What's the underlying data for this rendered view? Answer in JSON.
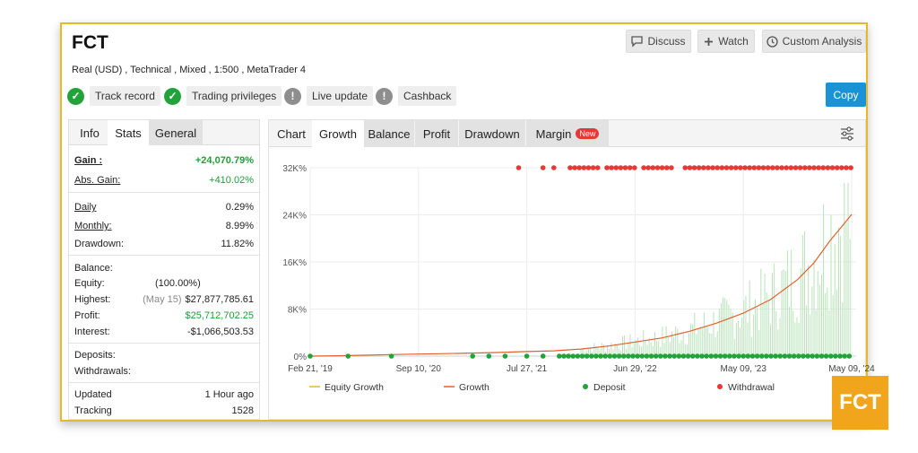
{
  "header": {
    "title": "FCT",
    "subtitle": "Real (USD) , Technical , Mixed , 1:500 , MetaTrader 4",
    "buttons": {
      "discuss": "Discuss",
      "watch": "Watch",
      "custom_analysis": "Custom Analysis",
      "copy": "Copy"
    }
  },
  "badges": [
    {
      "label": "Track record",
      "status": "verified"
    },
    {
      "label": "Trading privileges",
      "status": "verified"
    },
    {
      "label": "Live update",
      "status": "unverified"
    },
    {
      "label": "Cashback",
      "status": "unverified"
    }
  ],
  "left_tabs": {
    "info": "Info",
    "stats": "Stats",
    "general": "General"
  },
  "stats": {
    "gain_label": "Gain :",
    "gain_value": "+24,070.79%",
    "abs_gain_label": "Abs. Gain:",
    "abs_gain_value": "+410.02%",
    "daily_label": "Daily",
    "daily_value": "0.29%",
    "monthly_label": "Monthly:",
    "monthly_value": "8.99%",
    "drawdown_label": "Drawdown:",
    "drawdown_value": "11.82%",
    "balance_label": "Balance:",
    "equity_label": "Equity:",
    "equity_value": "(100.00%)",
    "highest_label": "Highest:",
    "highest_date": "(May 15)",
    "highest_value": "$27,877,785.61",
    "profit_label": "Profit:",
    "profit_value": "$25,712,702.25",
    "interest_label": "Interest:",
    "interest_value": "-$1,066,503.53",
    "deposits_label": "Deposits:",
    "withdrawals_label": "Withdrawals:",
    "updated_label": "Updated",
    "updated_value": "1 Hour ago",
    "tracking_label": "Tracking",
    "tracking_value": "1528"
  },
  "chart_tabs": {
    "chart": "Chart",
    "growth": "Growth",
    "balance": "Balance",
    "profit": "Profit",
    "drawdown": "Drawdown",
    "margin": "Margin",
    "new_badge": "New"
  },
  "chart_data": {
    "type": "line",
    "y_ticks": [
      "32K%",
      "24K%",
      "16K%",
      "8K%",
      "0%"
    ],
    "x_ticks": [
      "Feb 21, '19",
      "Sep 10, '20",
      "Jul 27, '21",
      "Jun 29, '22",
      "May 09, '23",
      "May 09, '24"
    ],
    "ylim": [
      0,
      32000
    ],
    "legend": [
      "Equity Growth",
      "Growth",
      "Deposit",
      "Withdrawal"
    ],
    "growth": [
      [
        0,
        0
      ],
      [
        0.05,
        60
      ],
      [
        0.1,
        150
      ],
      [
        0.15,
        260
      ],
      [
        0.2,
        350
      ],
      [
        0.25,
        430
      ],
      [
        0.3,
        520
      ],
      [
        0.35,
        620
      ],
      [
        0.4,
        780
      ],
      [
        0.45,
        900
      ],
      [
        0.5,
        1200
      ],
      [
        0.55,
        1700
      ],
      [
        0.6,
        2400
      ],
      [
        0.65,
        3100
      ],
      [
        0.7,
        4200
      ],
      [
        0.75,
        5600
      ],
      [
        0.8,
        7300
      ],
      [
        0.85,
        9600
      ],
      [
        0.9,
        13000
      ],
      [
        0.93,
        15800
      ],
      [
        0.96,
        19600
      ],
      [
        0.98,
        21800
      ],
      [
        1.0,
        24070
      ]
    ],
    "colors": {
      "growth": "#e0602e",
      "equity": "#e8b040",
      "deposit": "#22a33a",
      "withdrawal": "#e53935",
      "bars": "#b8e3b8"
    }
  },
  "logo_text": "FCT"
}
